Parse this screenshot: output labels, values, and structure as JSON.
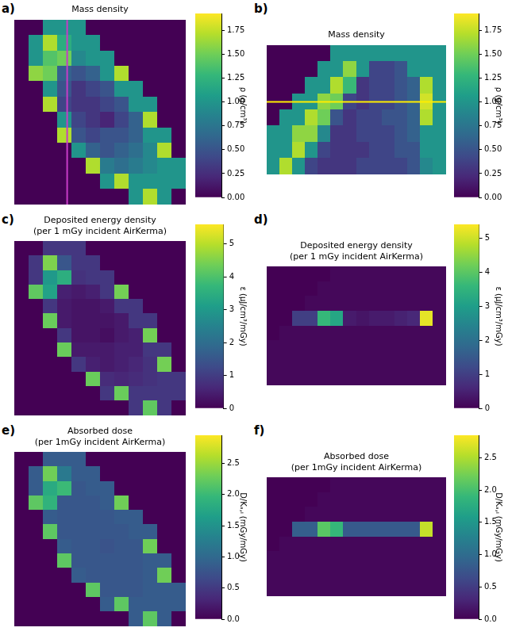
{
  "chart_data": [
    {
      "type": "heatmap",
      "panel": "a)",
      "title": "Mass density",
      "tick_labels": false,
      "slice_line": {
        "x": 3.7,
        "color": "#c83cc8"
      },
      "colorbar": {
        "label": "ρ (g/cm³)",
        "range": [
          0,
          1.93
        ],
        "ticks": [
          {
            "value": 0,
            "label": "0.00"
          },
          0.25,
          {
            "value": 0.5,
            "label": "0.50"
          },
          0.75,
          {
            "value": 1,
            "label": "1.00"
          },
          1.25,
          {
            "value": 1.5,
            "label": "1.50"
          },
          1.75
        ]
      },
      "cells": [
        [
          0,
          0,
          1.0,
          1.0,
          1.0,
          0,
          0,
          0,
          0,
          0,
          0,
          0
        ],
        [
          0,
          1.0,
          1.7,
          1.2,
          1.0,
          1.0,
          0,
          0,
          0,
          0,
          0,
          0
        ],
        [
          0,
          1.0,
          1.4,
          1.5,
          0.9,
          1.0,
          1.0,
          0,
          0,
          0,
          0,
          0
        ],
        [
          0,
          1.6,
          1.5,
          0.6,
          0.5,
          0.6,
          1.0,
          1.7,
          0,
          0,
          0,
          0
        ],
        [
          0,
          0,
          1.0,
          0.5,
          0.3,
          0.4,
          0.5,
          1.0,
          1.0,
          0,
          0,
          0
        ],
        [
          0,
          0,
          1.7,
          0.4,
          0.3,
          0.3,
          0.4,
          0.5,
          1.0,
          1.0,
          0,
          0
        ],
        [
          0,
          0,
          0,
          1.0,
          0.4,
          0.3,
          0.2,
          0.4,
          0.6,
          1.7,
          0,
          0
        ],
        [
          0,
          0,
          0,
          1.7,
          0.5,
          0.4,
          0.5,
          0.5,
          0.6,
          1.0,
          1.0,
          0
        ],
        [
          0,
          0,
          0,
          0,
          1.0,
          0.6,
          0.5,
          0.6,
          0.7,
          0.9,
          1.7,
          0
        ],
        [
          0,
          0,
          0,
          0,
          0,
          1.7,
          0.8,
          0.7,
          0.8,
          0.9,
          1.0,
          1.0
        ],
        [
          0,
          0,
          0,
          0,
          0,
          0,
          1.0,
          1.7,
          1.0,
          1.0,
          1.0,
          1.0
        ],
        [
          0,
          0,
          0,
          0,
          0,
          0,
          0,
          0,
          1.0,
          1.7,
          1.0,
          0
        ]
      ]
    },
    {
      "type": "heatmap",
      "panel": "b)",
      "title": "Mass density",
      "tick_labels": false,
      "slice_line": {
        "y": 3.5,
        "color": "#ffee00"
      },
      "colorbar": {
        "label": "ρ (g/cm³)",
        "range": [
          0,
          1.93
        ],
        "ticks": [
          {
            "value": 0,
            "label": "0.00"
          },
          0.25,
          {
            "value": 0.5,
            "label": "0.50"
          },
          0.75,
          {
            "value": 1,
            "label": "1.00"
          },
          1.25,
          {
            "value": 1.5,
            "label": "1.50"
          },
          1.75
        ]
      },
      "cells": [
        [
          0,
          0,
          0,
          0,
          0,
          1.0,
          1.0,
          1.0,
          1.0,
          1.0,
          1.0,
          1.0,
          1.0,
          1.0
        ],
        [
          0,
          0,
          0,
          0,
          1.0,
          1.0,
          1.6,
          1.0,
          0.4,
          0.4,
          0.5,
          1.0,
          1.0,
          1.0
        ],
        [
          0,
          0,
          0,
          1.0,
          1.0,
          1.7,
          1.3,
          0.3,
          0.4,
          0.4,
          0.5,
          0.6,
          1.7,
          1.0
        ],
        [
          0,
          0,
          1.0,
          1.0,
          1.6,
          1.5,
          0.4,
          0.3,
          0.4,
          0.4,
          0.5,
          0.6,
          1.8,
          1.0
        ],
        [
          0,
          1.0,
          1.0,
          1.7,
          1.5,
          0.5,
          0.3,
          0.4,
          0.4,
          0.5,
          0.5,
          0.6,
          1.7,
          1.0
        ],
        [
          1.0,
          1.0,
          1.6,
          1.6,
          0.9,
          0.3,
          0.3,
          0.4,
          0.4,
          0.4,
          0.5,
          0.6,
          1.0,
          1.0
        ],
        [
          1.0,
          1.0,
          1.7,
          1.0,
          0.4,
          0.3,
          0.3,
          0.3,
          0.4,
          0.4,
          0.5,
          0.5,
          1.0,
          1.0
        ],
        [
          1.0,
          1.7,
          1.0,
          0.4,
          0.3,
          0.3,
          0.3,
          0.4,
          0.4,
          0.4,
          0.4,
          0.5,
          0.9,
          1.0
        ]
      ]
    },
    {
      "type": "heatmap",
      "panel": "c)",
      "title": [
        "Deposited energy density",
        "(per 1 mGy incident AirKerma)"
      ],
      "tick_labels": false,
      "colorbar": {
        "label": "ε (μJ/cm³/mGy)",
        "range": [
          0,
          5.6
        ],
        "ticks": [
          0,
          1,
          2,
          3,
          4,
          5
        ]
      },
      "cells": [
        [
          0,
          0,
          0.9,
          0.9,
          0.9,
          0,
          0,
          0,
          0,
          0,
          0,
          0
        ],
        [
          0,
          0.9,
          4.5,
          1.5,
          0.9,
          0.9,
          0,
          0,
          0,
          0,
          0,
          0
        ],
        [
          0,
          0.9,
          3.0,
          3.5,
          0.8,
          0.9,
          0.9,
          0,
          0,
          0,
          0,
          0
        ],
        [
          0,
          4.2,
          3.2,
          0.5,
          0.4,
          0.5,
          0.9,
          4.4,
          0,
          0,
          0,
          0
        ],
        [
          0,
          0,
          0.9,
          0.4,
          0.3,
          0.3,
          0.4,
          0.9,
          0.9,
          0,
          0,
          0
        ],
        [
          0,
          0,
          4.3,
          0.4,
          0.3,
          0.3,
          0.3,
          0.4,
          0.9,
          0.9,
          0,
          0
        ],
        [
          0,
          0,
          0,
          0.9,
          0.3,
          0.3,
          0.2,
          0.4,
          0.5,
          4.4,
          0,
          0
        ],
        [
          0,
          0,
          0,
          4.3,
          0.4,
          0.4,
          0.4,
          0.5,
          0.5,
          0.9,
          0.9,
          0
        ],
        [
          0,
          0,
          0,
          0,
          0.9,
          0.5,
          0.4,
          0.5,
          0.6,
          0.8,
          4.4,
          0
        ],
        [
          0,
          0,
          0,
          0,
          0,
          4.3,
          0.7,
          0.6,
          0.7,
          0.8,
          0.9,
          0.9
        ],
        [
          0,
          0,
          0,
          0,
          0,
          0,
          0.9,
          4.3,
          0.9,
          0.9,
          0.9,
          0.9
        ],
        [
          0,
          0,
          0,
          0,
          0,
          0,
          0,
          0,
          0.9,
          4.2,
          0.9,
          0
        ]
      ]
    },
    {
      "type": "heatmap",
      "panel": "d)",
      "title": [
        "Deposited energy density",
        "(per 1 mGy incident AirKerma)"
      ],
      "tick_labels": false,
      "colorbar": {
        "label": "ε (μJ/cm³/mGy)",
        "range": [
          0,
          5.4
        ],
        "ticks": [
          0,
          1,
          2,
          3,
          4,
          5
        ]
      },
      "cells": [
        [
          0,
          0,
          0,
          0,
          0,
          0.1,
          0.1,
          0.1,
          0.1,
          0.1,
          0.1,
          0.1,
          0.1,
          0.1
        ],
        [
          0,
          0,
          0,
          0,
          0.1,
          0.1,
          0.1,
          0.1,
          0.1,
          0.1,
          0.1,
          0.1,
          0.1,
          0.1
        ],
        [
          0,
          0,
          0,
          0.1,
          0.1,
          0.1,
          0.1,
          0.1,
          0.1,
          0.1,
          0.1,
          0.1,
          0.1,
          0.1
        ],
        [
          0,
          0,
          1.0,
          1.0,
          3.6,
          3.2,
          0.4,
          0.3,
          0.4,
          0.4,
          0.5,
          0.6,
          5.2,
          0.1
        ],
        [
          0,
          0.1,
          0.1,
          0.1,
          0.1,
          0.1,
          0.1,
          0.1,
          0.1,
          0.1,
          0.1,
          0.1,
          0.1,
          0.1
        ],
        [
          0.1,
          0.1,
          0.1,
          0.1,
          0.1,
          0.1,
          0.1,
          0.1,
          0.1,
          0.1,
          0.1,
          0.1,
          0.1,
          0.1
        ],
        [
          0.1,
          0.1,
          0.1,
          0.1,
          0.1,
          0.1,
          0.1,
          0.1,
          0.1,
          0.1,
          0.1,
          0.1,
          0.1,
          0.1
        ],
        [
          0.1,
          0.1,
          0.1,
          0.1,
          0.1,
          0.1,
          0.1,
          0.1,
          0.1,
          0.1,
          0.1,
          0.1,
          0.1,
          0.1
        ]
      ]
    },
    {
      "type": "heatmap",
      "panel": "e)",
      "title": [
        "Absorbed dose",
        "(per 1mGy incident AirKerma)"
      ],
      "tick_labels": false,
      "colorbar": {
        "label": "D/Kₐ,ᵢ (mGy/mGy)",
        "range": [
          0,
          2.95
        ],
        "ticks": [
          {
            "value": 0,
            "label": "0.0"
          },
          0.5,
          {
            "value": 1,
            "label": "1.0"
          },
          1.5,
          {
            "value": 2,
            "label": "2.0"
          },
          2.5
        ]
      },
      "cells": [
        [
          0,
          0,
          0.85,
          0.85,
          0.85,
          0,
          0,
          0,
          0,
          0,
          0,
          0
        ],
        [
          0,
          0.85,
          2.3,
          1.2,
          0.85,
          0.85,
          0,
          0,
          0,
          0,
          0,
          0
        ],
        [
          0,
          0.85,
          1.8,
          2.0,
          0.8,
          0.85,
          0.85,
          0,
          0,
          0,
          0,
          0
        ],
        [
          0,
          2.2,
          1.9,
          0.8,
          0.8,
          0.8,
          0.85,
          2.3,
          0,
          0,
          0,
          0
        ],
        [
          0,
          0,
          0.85,
          0.8,
          0.8,
          0.8,
          0.8,
          0.85,
          0.85,
          0,
          0,
          0
        ],
        [
          0,
          0,
          2.2,
          0.8,
          0.8,
          0.8,
          0.8,
          0.8,
          0.85,
          0.85,
          0,
          0
        ],
        [
          0,
          0,
          0,
          0.85,
          0.8,
          0.8,
          0.75,
          0.8,
          0.8,
          2.3,
          0,
          0
        ],
        [
          0,
          0,
          0,
          2.2,
          0.8,
          0.8,
          0.8,
          0.8,
          0.8,
          0.85,
          0.85,
          0
        ],
        [
          0,
          0,
          0,
          0,
          0.85,
          0.8,
          0.8,
          0.8,
          0.8,
          0.85,
          2.3,
          0
        ],
        [
          0,
          0,
          0,
          0,
          0,
          2.2,
          0.8,
          0.8,
          0.8,
          0.85,
          0.85,
          0.85
        ],
        [
          0,
          0,
          0,
          0,
          0,
          0,
          0.85,
          2.2,
          0.85,
          0.85,
          0.85,
          0.85
        ],
        [
          0,
          0,
          0,
          0,
          0,
          0,
          0,
          0,
          0.85,
          2.2,
          0.85,
          0
        ]
      ]
    },
    {
      "type": "heatmap",
      "panel": "f)",
      "title": [
        "Absorbed dose",
        "(per 1mGy incident AirKerma)"
      ],
      "tick_labels": false,
      "colorbar": {
        "label": "D/Kₐ,ᵢ (mGy/mGy)",
        "range": [
          0,
          2.85
        ],
        "ticks": [
          {
            "value": 0,
            "label": "0.0"
          },
          0.5,
          {
            "value": 1,
            "label": "1.0"
          },
          1.5,
          {
            "value": 2,
            "label": "2.0"
          },
          2.5
        ]
      },
      "cells": [
        [
          0,
          0,
          0,
          0,
          0,
          0.05,
          0.05,
          0.05,
          0.05,
          0.05,
          0.05,
          0.05,
          0.05,
          0.05
        ],
        [
          0,
          0,
          0,
          0,
          0.05,
          0.05,
          0.05,
          0.05,
          0.05,
          0.05,
          0.05,
          0.05,
          0.05,
          0.05
        ],
        [
          0,
          0,
          0,
          0.05,
          0.05,
          0.05,
          0.05,
          0.05,
          0.05,
          0.05,
          0.05,
          0.05,
          0.05,
          0.05
        ],
        [
          0,
          0,
          0.85,
          0.85,
          2.1,
          1.9,
          0.8,
          0.8,
          0.8,
          0.8,
          0.8,
          0.8,
          2.6,
          0.05
        ],
        [
          0,
          0.05,
          0.05,
          0.05,
          0.05,
          0.05,
          0.05,
          0.05,
          0.05,
          0.05,
          0.05,
          0.05,
          0.05,
          0.05
        ],
        [
          0.05,
          0.05,
          0.05,
          0.05,
          0.05,
          0.05,
          0.05,
          0.05,
          0.05,
          0.05,
          0.05,
          0.05,
          0.05,
          0.05
        ],
        [
          0.05,
          0.05,
          0.05,
          0.05,
          0.05,
          0.05,
          0.05,
          0.05,
          0.05,
          0.05,
          0.05,
          0.05,
          0.05,
          0.05
        ],
        [
          0.05,
          0.05,
          0.05,
          0.05,
          0.05,
          0.05,
          0.05,
          0.05,
          0.05,
          0.05,
          0.05,
          0.05,
          0.05,
          0.05
        ]
      ]
    }
  ]
}
